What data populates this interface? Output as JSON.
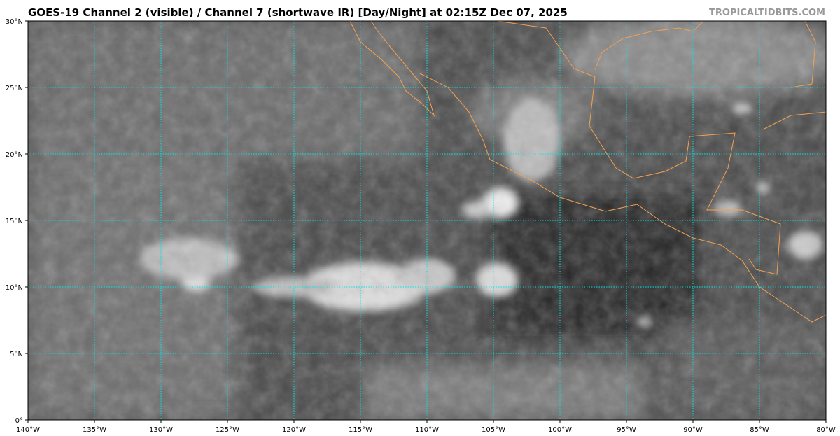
{
  "title": "GOES-19 Channel 2 (visible) / Channel 7 (shortwave IR) [Day/Night] at 02:15Z Dec 07, 2025",
  "brand": "TROPICALTIDBITS.COM",
  "map": {
    "lon_range": [
      -140,
      -80
    ],
    "lat_range": [
      0,
      30
    ],
    "grid_step_deg": 5,
    "grid_color": "#00e5e5",
    "coastline_color": "#f5a050",
    "lon_labels": [
      "140°W",
      "135°W",
      "130°W",
      "125°W",
      "120°W",
      "115°W",
      "110°W",
      "105°W",
      "100°W",
      "95°W",
      "90°W",
      "85°W",
      "80°W"
    ],
    "lat_labels": [
      "0°",
      "5°N",
      "10°N",
      "15°N",
      "20°N",
      "25°N",
      "30°N"
    ]
  }
}
